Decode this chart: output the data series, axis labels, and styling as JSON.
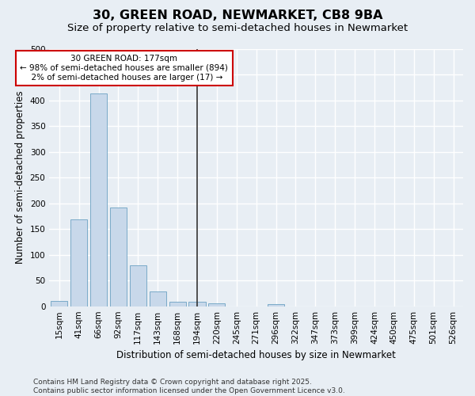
{
  "title": "30, GREEN ROAD, NEWMARKET, CB8 9BA",
  "subtitle": "Size of property relative to semi-detached houses in Newmarket",
  "xlabel": "Distribution of semi-detached houses by size in Newmarket",
  "ylabel": "Number of semi-detached properties",
  "categories": [
    "15sqm",
    "41sqm",
    "66sqm",
    "92sqm",
    "117sqm",
    "143sqm",
    "168sqm",
    "194sqm",
    "220sqm",
    "245sqm",
    "271sqm",
    "296sqm",
    "322sqm",
    "347sqm",
    "373sqm",
    "399sqm",
    "424sqm",
    "450sqm",
    "475sqm",
    "501sqm",
    "526sqm"
  ],
  "values": [
    10,
    168,
    413,
    192,
    80,
    29,
    9,
    8,
    5,
    0,
    0,
    4,
    0,
    0,
    0,
    0,
    0,
    0,
    0,
    0,
    0
  ],
  "bar_color": "#c8d8ea",
  "bar_edge_color": "#7aaac8",
  "vline_x_index": 7,
  "vline_color": "#333333",
  "annotation_line1": "30 GREEN ROAD: 177sqm",
  "annotation_line2": "← 98% of semi-detached houses are smaller (894)",
  "annotation_line3": "  2% of semi-detached houses are larger (17) →",
  "annotation_box_color": "#ffffff",
  "annotation_box_edge_color": "#cc0000",
  "ylim": [
    0,
    500
  ],
  "yticks": [
    0,
    50,
    100,
    150,
    200,
    250,
    300,
    350,
    400,
    450,
    500
  ],
  "footer": "Contains HM Land Registry data © Crown copyright and database right 2025.\nContains public sector information licensed under the Open Government Licence v3.0.",
  "bg_color": "#e8eef4",
  "plot_bg_color": "#e8eef4",
  "grid_color": "#ffffff",
  "title_fontsize": 11.5,
  "subtitle_fontsize": 9.5,
  "axis_label_fontsize": 8.5,
  "tick_fontsize": 7.5,
  "annotation_fontsize": 7.5,
  "footer_fontsize": 6.5
}
